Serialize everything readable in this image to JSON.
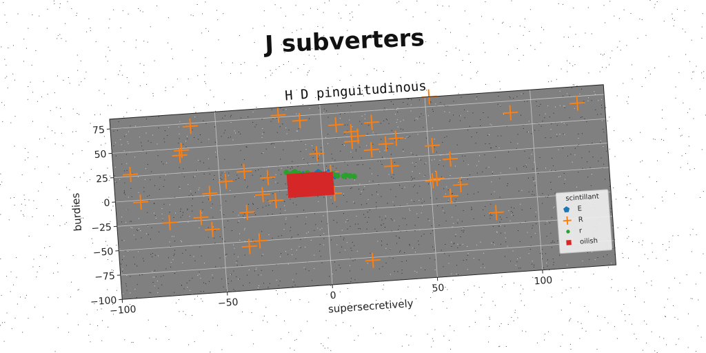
{
  "suptitle": "J subverters",
  "chart_data": {
    "type": "scatter",
    "title": "H D pinguitudinous",
    "xlabel": "supersecretively",
    "ylabel": "burdies",
    "xlim": [
      -100,
      135
    ],
    "ylim": [
      -100,
      85
    ],
    "xticks": [
      -100,
      -50,
      0,
      50,
      100
    ],
    "yticks": [
      -100,
      -75,
      -50,
      -25,
      0,
      25,
      50,
      75
    ],
    "grid": true,
    "legend": {
      "title": "scintillant",
      "placement": "lower-right"
    },
    "series": [
      {
        "name": "E",
        "marker": "pentagon",
        "color": "#1f77b4",
        "points": [
          [
            -3,
            15
          ],
          [
            2,
            14
          ],
          [
            -10,
            14
          ],
          [
            5,
            12
          ]
        ]
      },
      {
        "name": "R",
        "marker": "plus",
        "color": "#ff7f0e",
        "points": [
          [
            -62,
            72
          ],
          [
            -20,
            77
          ],
          [
            -10,
            70
          ],
          [
            52,
            85
          ],
          [
            122,
            68
          ],
          [
            90,
            63
          ],
          [
            7,
            63
          ],
          [
            24,
            63
          ],
          [
            14,
            55
          ],
          [
            14,
            45
          ],
          [
            17,
            50
          ],
          [
            35,
            45
          ],
          [
            30,
            40
          ],
          [
            23,
            35
          ],
          [
            -67,
            48
          ],
          [
            -68,
            43
          ],
          [
            -92,
            27
          ],
          [
            -38,
            22
          ],
          [
            -47,
            13
          ],
          [
            -27,
            14
          ],
          [
            -3,
            35
          ],
          [
            3,
            15
          ],
          [
            52,
            35
          ],
          [
            60,
            20
          ],
          [
            32,
            17
          ],
          [
            -55,
            2
          ],
          [
            -88,
            -2
          ],
          [
            -30,
            -3
          ],
          [
            -24,
            -10
          ],
          [
            51,
            -1
          ],
          [
            53,
            1
          ],
          [
            64,
            -7
          ],
          [
            4,
            -7
          ],
          [
            -75,
            -25
          ],
          [
            -60,
            -22
          ],
          [
            -55,
            -35
          ],
          [
            -38,
            -20
          ],
          [
            59,
            -18
          ],
          [
            80,
            -38
          ],
          [
            -38,
            -55
          ],
          [
            -33,
            -50
          ],
          [
            20,
            -78
          ]
        ]
      },
      {
        "name": "r",
        "marker": "circle",
        "color": "#2ca02c",
        "points": [
          [
            -18,
            18
          ],
          [
            -15,
            17
          ],
          [
            -12,
            16
          ],
          [
            -9,
            15
          ],
          [
            -6,
            14
          ],
          [
            -3,
            13
          ],
          [
            0,
            13
          ],
          [
            3,
            12
          ],
          [
            6,
            11
          ],
          [
            9,
            10
          ],
          [
            12,
            10
          ],
          [
            14,
            9
          ],
          [
            -14,
            18
          ],
          [
            -8,
            16
          ],
          [
            -2,
            14
          ],
          [
            4,
            13
          ],
          [
            10,
            11
          ],
          [
            -16,
            16
          ]
        ]
      },
      {
        "name": "oilish",
        "marker": "square",
        "color": "#d62728",
        "points": [
          [
            -16,
            12
          ],
          [
            -13,
            12
          ],
          [
            -10,
            12
          ],
          [
            -7,
            12
          ],
          [
            -4,
            12
          ],
          [
            -1,
            12
          ],
          [
            2,
            11
          ],
          [
            -16,
            8
          ],
          [
            -13,
            8
          ],
          [
            -10,
            8
          ],
          [
            -7,
            8
          ],
          [
            -4,
            8
          ],
          [
            -1,
            8
          ],
          [
            2,
            8
          ],
          [
            -16,
            4
          ],
          [
            -13,
            4
          ],
          [
            -10,
            4
          ],
          [
            -7,
            4
          ],
          [
            -4,
            4
          ],
          [
            -1,
            4
          ],
          [
            2,
            4
          ],
          [
            -16,
            0
          ],
          [
            -13,
            0
          ],
          [
            -10,
            0
          ],
          [
            -7,
            0
          ],
          [
            -4,
            0
          ],
          [
            -1,
            0
          ],
          [
            2,
            0
          ],
          [
            -16,
            -4
          ],
          [
            -13,
            -4
          ],
          [
            -10,
            -4
          ],
          [
            -7,
            -4
          ],
          [
            -4,
            -4
          ],
          [
            -1,
            -4
          ],
          [
            2,
            -4
          ]
        ]
      }
    ]
  }
}
